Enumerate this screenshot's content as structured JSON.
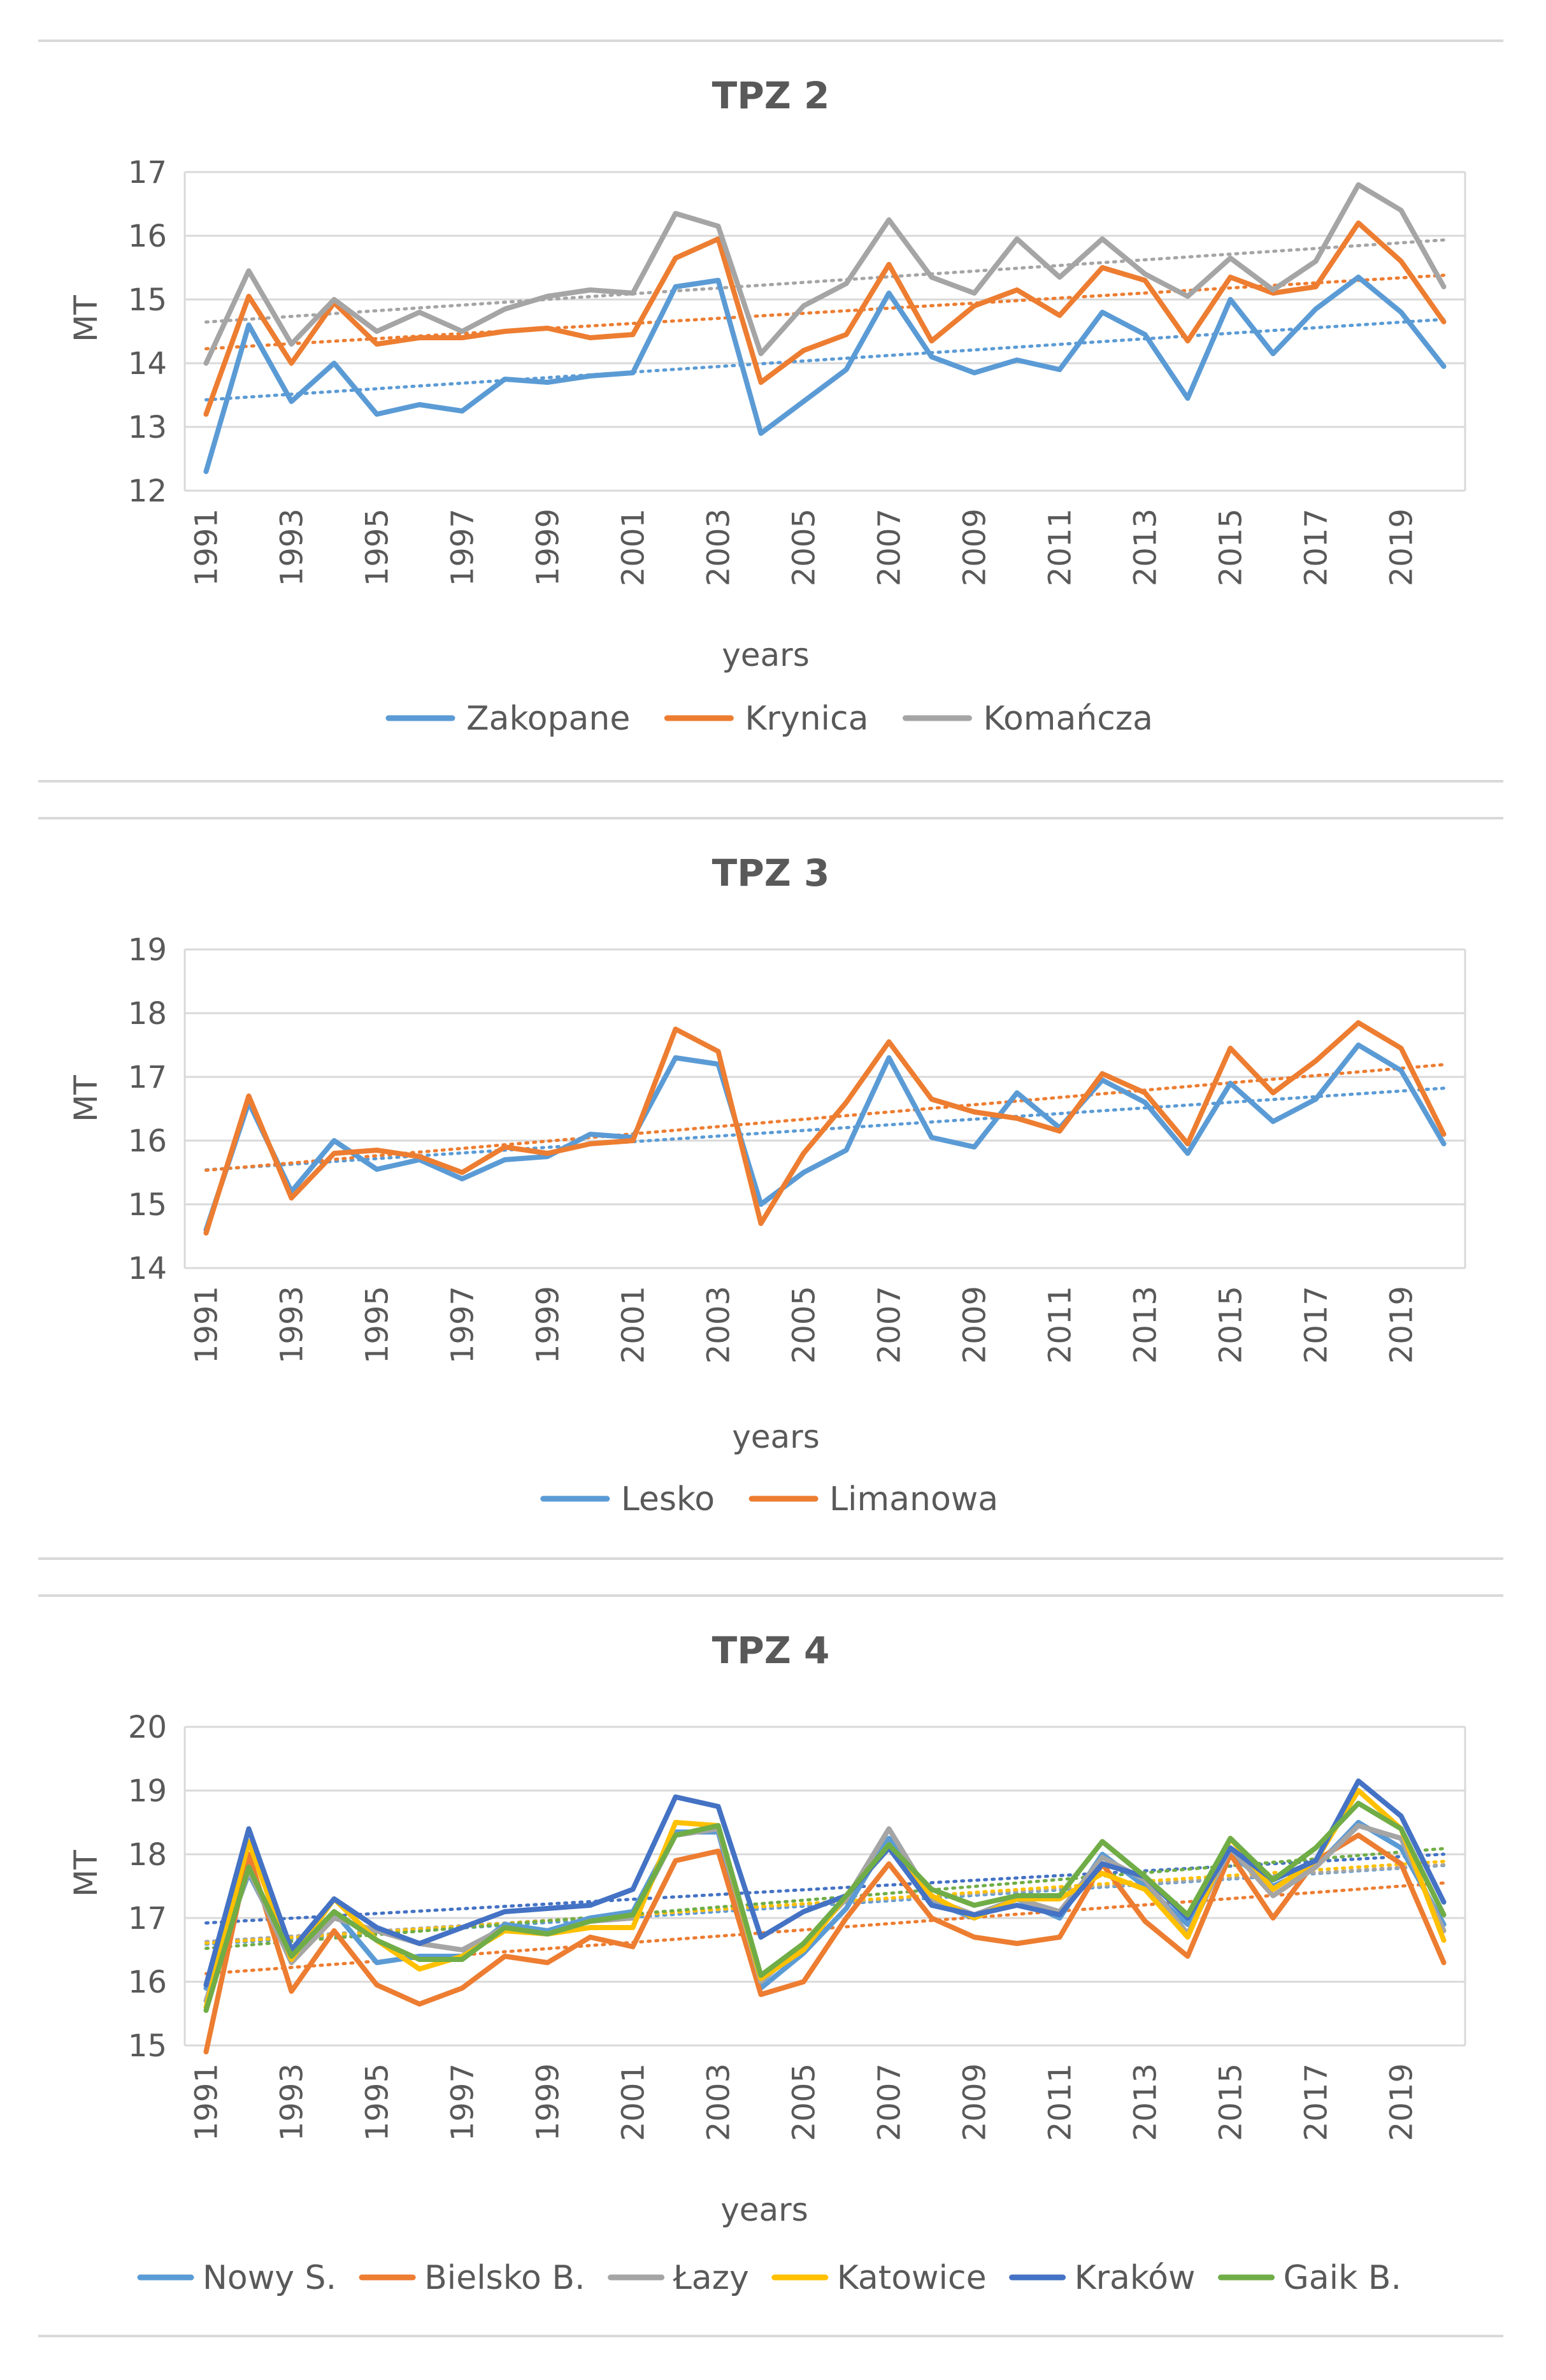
{
  "chart_data": [
    {
      "type": "line",
      "title": "TPZ 2",
      "xlabel": "years",
      "ylabel": "MT",
      "ylim": [
        12,
        17
      ],
      "yticks": [
        12,
        13,
        14,
        15,
        16,
        17
      ],
      "x": [
        1991,
        1992,
        1993,
        1994,
        1995,
        1996,
        1997,
        1998,
        1999,
        2000,
        2001,
        2002,
        2003,
        2004,
        2005,
        2006,
        2007,
        2008,
        2009,
        2010,
        2011,
        2012,
        2013,
        2014,
        2015,
        2016,
        2017,
        2018,
        2019,
        2020
      ],
      "xtick_labels": [
        "1991",
        "1993",
        "1995",
        "1997",
        "1999",
        "2001",
        "2003",
        "2005",
        "2007",
        "2009",
        "2011",
        "2013",
        "2015",
        "2017",
        "2019"
      ],
      "trendlines": true,
      "grid": "horizontal",
      "legend_position": "bottom",
      "series": [
        {
          "name": "Zakopane",
          "color": "#5b9bd5",
          "values": [
            12.3,
            14.6,
            13.4,
            14.0,
            13.2,
            13.35,
            13.25,
            13.75,
            13.7,
            13.8,
            13.85,
            15.2,
            15.3,
            12.9,
            13.4,
            13.9,
            15.1,
            14.1,
            13.85,
            14.05,
            13.9,
            14.8,
            14.45,
            13.45,
            15.0,
            14.15,
            14.85,
            15.35,
            14.8,
            13.95
          ]
        },
        {
          "name": "Krynica",
          "color": "#ed7d31",
          "values": [
            13.2,
            15.05,
            14.0,
            14.95,
            14.3,
            14.4,
            14.4,
            14.5,
            14.55,
            14.4,
            14.45,
            15.65,
            15.95,
            13.7,
            14.2,
            14.45,
            15.55,
            14.35,
            14.9,
            15.15,
            14.75,
            15.5,
            15.3,
            14.35,
            15.35,
            15.1,
            15.2,
            16.2,
            15.6,
            14.65
          ]
        },
        {
          "name": "Komańcza",
          "color": "#a5a5a5",
          "values": [
            14.0,
            15.45,
            14.3,
            15.0,
            14.5,
            14.8,
            14.5,
            14.85,
            15.05,
            15.15,
            15.1,
            16.35,
            16.15,
            14.15,
            14.9,
            15.25,
            16.25,
            15.35,
            15.1,
            15.95,
            15.35,
            15.95,
            15.4,
            15.05,
            15.65,
            15.15,
            15.6,
            16.8,
            16.4,
            15.2
          ]
        }
      ]
    },
    {
      "type": "line",
      "title": "TPZ 3",
      "xlabel": "years",
      "ylabel": "MT",
      "ylim": [
        14,
        19
      ],
      "yticks": [
        14,
        15,
        16,
        17,
        18,
        19
      ],
      "x": [
        1991,
        1992,
        1993,
        1994,
        1995,
        1996,
        1997,
        1998,
        1999,
        2000,
        2001,
        2002,
        2003,
        2004,
        2005,
        2006,
        2007,
        2008,
        2009,
        2010,
        2011,
        2012,
        2013,
        2014,
        2015,
        2016,
        2017,
        2018,
        2019,
        2020
      ],
      "xtick_labels": [
        "1991",
        "1993",
        "1995",
        "1997",
        "1999",
        "2001",
        "2003",
        "2005",
        "2007",
        "2009",
        "2011",
        "2013",
        "2015",
        "2017",
        "2019"
      ],
      "trendlines": true,
      "grid": "horizontal",
      "legend_position": "bottom",
      "series": [
        {
          "name": "Lesko",
          "color": "#5b9bd5",
          "values": [
            14.6,
            16.6,
            15.2,
            16.0,
            15.55,
            15.7,
            15.4,
            15.7,
            15.75,
            16.1,
            16.05,
            17.3,
            17.2,
            15.0,
            15.5,
            15.85,
            17.3,
            16.05,
            15.9,
            16.75,
            16.2,
            16.95,
            16.6,
            15.8,
            16.9,
            16.3,
            16.65,
            17.5,
            17.1,
            15.95
          ]
        },
        {
          "name": "Limanowa",
          "color": "#ed7d31",
          "values": [
            14.55,
            16.7,
            15.1,
            15.8,
            15.85,
            15.75,
            15.5,
            15.9,
            15.8,
            15.95,
            16.0,
            17.75,
            17.4,
            14.7,
            15.8,
            16.6,
            17.55,
            16.65,
            16.45,
            16.35,
            16.15,
            17.05,
            16.75,
            15.95,
            17.45,
            16.75,
            17.25,
            17.85,
            17.45,
            16.1
          ]
        }
      ]
    },
    {
      "type": "line",
      "title": "TPZ 4",
      "xlabel": "years",
      "ylabel": "MT",
      "ylim": [
        15,
        20
      ],
      "yticks": [
        15,
        16,
        17,
        18,
        19,
        20
      ],
      "x": [
        1991,
        1992,
        1993,
        1994,
        1995,
        1996,
        1997,
        1998,
        1999,
        2000,
        2001,
        2002,
        2003,
        2004,
        2005,
        2006,
        2007,
        2008,
        2009,
        2010,
        2011,
        2012,
        2013,
        2014,
        2015,
        2016,
        2017,
        2018,
        2019,
        2020
      ],
      "xtick_labels": [
        "1991",
        "1993",
        "1995",
        "1997",
        "1999",
        "2001",
        "2003",
        "2005",
        "2007",
        "2009",
        "2011",
        "2013",
        "2015",
        "2017",
        "2019"
      ],
      "trendlines": true,
      "grid": "horizontal",
      "legend_position": "bottom",
      "series": [
        {
          "name": "Nowy S.",
          "color": "#5b9bd5",
          "values": [
            15.9,
            17.7,
            16.4,
            17.1,
            16.3,
            16.4,
            16.4,
            16.9,
            16.8,
            17.0,
            17.1,
            18.35,
            18.35,
            15.9,
            16.45,
            17.15,
            18.25,
            17.25,
            17.0,
            17.3,
            17.0,
            18.0,
            17.5,
            16.9,
            18.0,
            17.5,
            17.8,
            18.5,
            18.1,
            16.9
          ]
        },
        {
          "name": "Bielsko B.",
          "color": "#ed7d31",
          "values": [
            14.9,
            18.0,
            15.85,
            16.8,
            15.95,
            15.65,
            15.9,
            16.4,
            16.3,
            16.7,
            16.55,
            17.9,
            18.05,
            15.8,
            16.0,
            17.0,
            17.85,
            17.0,
            16.7,
            16.6,
            16.7,
            17.85,
            16.95,
            16.4,
            18.0,
            17.0,
            17.9,
            18.3,
            17.85,
            16.3
          ]
        },
        {
          "name": "Łazy",
          "color": "#a5a5a5",
          "values": [
            15.7,
            17.75,
            16.3,
            17.0,
            16.8,
            16.6,
            16.5,
            16.85,
            16.75,
            16.95,
            17.0,
            18.3,
            18.4,
            16.0,
            16.6,
            17.3,
            18.4,
            17.3,
            17.05,
            17.3,
            17.1,
            17.95,
            17.6,
            16.75,
            18.1,
            17.35,
            17.8,
            18.45,
            18.25,
            16.8
          ]
        },
        {
          "name": "Katowice",
          "color": "#ffc000",
          "values": [
            15.6,
            18.2,
            16.35,
            17.3,
            16.65,
            16.2,
            16.4,
            16.8,
            16.75,
            16.85,
            16.85,
            18.5,
            18.45,
            16.05,
            16.5,
            17.35,
            18.15,
            17.35,
            17.0,
            17.3,
            17.3,
            17.7,
            17.45,
            16.7,
            18.25,
            17.45,
            17.9,
            19.0,
            18.4,
            16.65
          ]
        },
        {
          "name": "Kraków",
          "color": "#4472c4",
          "values": [
            15.95,
            18.4,
            16.5,
            17.3,
            16.85,
            16.6,
            16.85,
            17.1,
            17.15,
            17.2,
            17.45,
            18.9,
            18.75,
            16.7,
            17.1,
            17.35,
            18.1,
            17.2,
            17.05,
            17.2,
            17.05,
            17.85,
            17.65,
            17.0,
            18.1,
            17.6,
            17.9,
            19.15,
            18.6,
            17.25
          ]
        },
        {
          "name": "Gaik B.",
          "color": "#70ad47",
          "values": [
            15.55,
            17.8,
            16.4,
            17.1,
            16.65,
            16.35,
            16.35,
            16.85,
            16.75,
            16.95,
            17.05,
            18.3,
            18.45,
            16.1,
            16.6,
            17.35,
            18.15,
            17.45,
            17.2,
            17.35,
            17.35,
            18.2,
            17.65,
            17.05,
            18.25,
            17.6,
            18.1,
            18.8,
            18.4,
            17.05
          ]
        }
      ]
    }
  ]
}
